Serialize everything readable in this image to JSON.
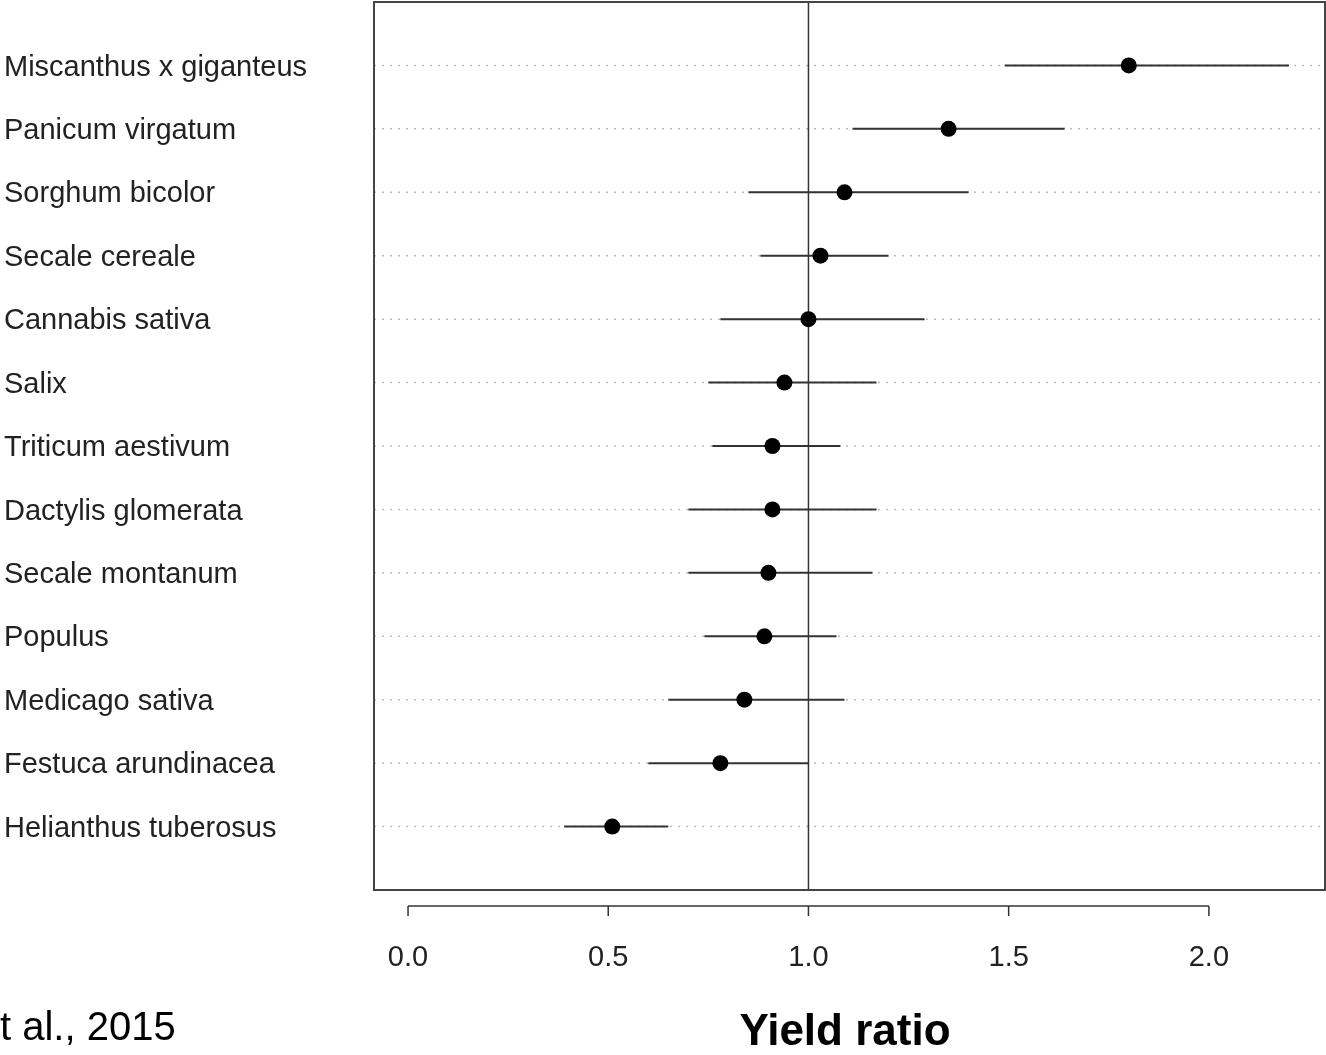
{
  "chart_data": {
    "type": "scatter",
    "orientation": "horizontal",
    "xlabel": "Yield ratio",
    "annotations": [
      "t al., 2015"
    ],
    "categories": [
      "Miscanthus x giganteus",
      "Panicum virgatum",
      "Sorghum bicolor",
      "Secale cereale",
      "Cannabis sativa",
      "Salix",
      "Triticum aestivum",
      "Dactylis glomerata",
      "Secale montanum",
      "Populus",
      "Medicago sativa",
      "Festuca arundinacea",
      "Helianthus tuberosus"
    ],
    "values": [
      1.8,
      1.35,
      1.09,
      1.03,
      1.0,
      0.94,
      0.91,
      0.91,
      0.9,
      0.89,
      0.84,
      0.78,
      0.51
    ],
    "errors": [
      [
        1.49,
        2.2
      ],
      [
        1.11,
        1.64
      ],
      [
        0.85,
        1.4
      ],
      [
        0.88,
        1.2
      ],
      [
        0.78,
        1.29
      ],
      [
        0.75,
        1.17
      ],
      [
        0.76,
        1.08
      ],
      [
        0.7,
        1.17
      ],
      [
        0.7,
        1.16
      ],
      [
        0.74,
        1.07
      ],
      [
        0.65,
        1.09
      ],
      [
        0.6,
        1.0
      ],
      [
        0.39,
        0.65
      ]
    ],
    "color": "#000000",
    "marker": "circle",
    "grid": "y",
    "xlim": [
      -0.085,
      2.29
    ],
    "xticks": [
      {
        "value": 0,
        "label": "0.0"
      },
      {
        "value": 0.5,
        "label": "0.5"
      },
      {
        "value": 1,
        "label": "1.0"
      },
      {
        "value": 1.5,
        "label": "1.5"
      },
      {
        "value": 2,
        "label": "2.0"
      }
    ],
    "ref_lines": [
      {
        "axis": "x",
        "value": 1,
        "color": "#333333"
      }
    ]
  }
}
